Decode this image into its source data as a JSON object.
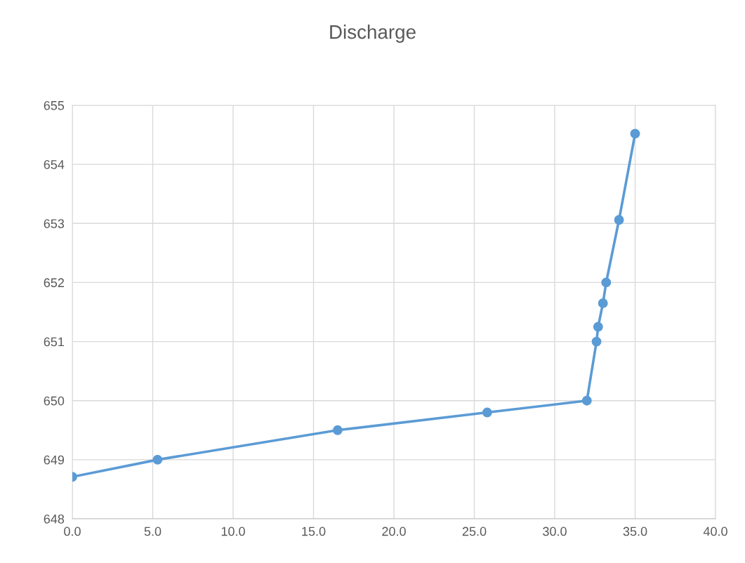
{
  "chart_data": {
    "type": "line",
    "title": "Discharge",
    "series": [
      {
        "color": "#5b9bd5",
        "x": [
          0,
          5.3,
          16.5,
          25.8,
          32.0,
          32.6,
          32.7,
          33.0,
          33.2,
          34.0,
          35.0
        ],
        "values": [
          648.71,
          649.0,
          649.5,
          649.8,
          650.0,
          651.0,
          651.25,
          651.65,
          652.0,
          653.06,
          654.52
        ]
      }
    ],
    "xlim": [
      0,
      40
    ],
    "xticks": [
      {
        "value": 0,
        "label": "0.0"
      },
      {
        "value": 5,
        "label": "5.0"
      },
      {
        "value": 10,
        "label": "10.0"
      },
      {
        "value": 15,
        "label": "15.0"
      },
      {
        "value": 20,
        "label": "20.0"
      },
      {
        "value": 25,
        "label": "25.0"
      },
      {
        "value": 30,
        "label": "30.0"
      },
      {
        "value": 35,
        "label": "35.0"
      },
      {
        "value": 40,
        "label": "40.0"
      }
    ],
    "ylim": [
      648,
      655
    ],
    "yticks": [
      648,
      649,
      650,
      651,
      652,
      653,
      654,
      655
    ],
    "grid": true,
    "marker": "circle",
    "line_style": "solid"
  }
}
